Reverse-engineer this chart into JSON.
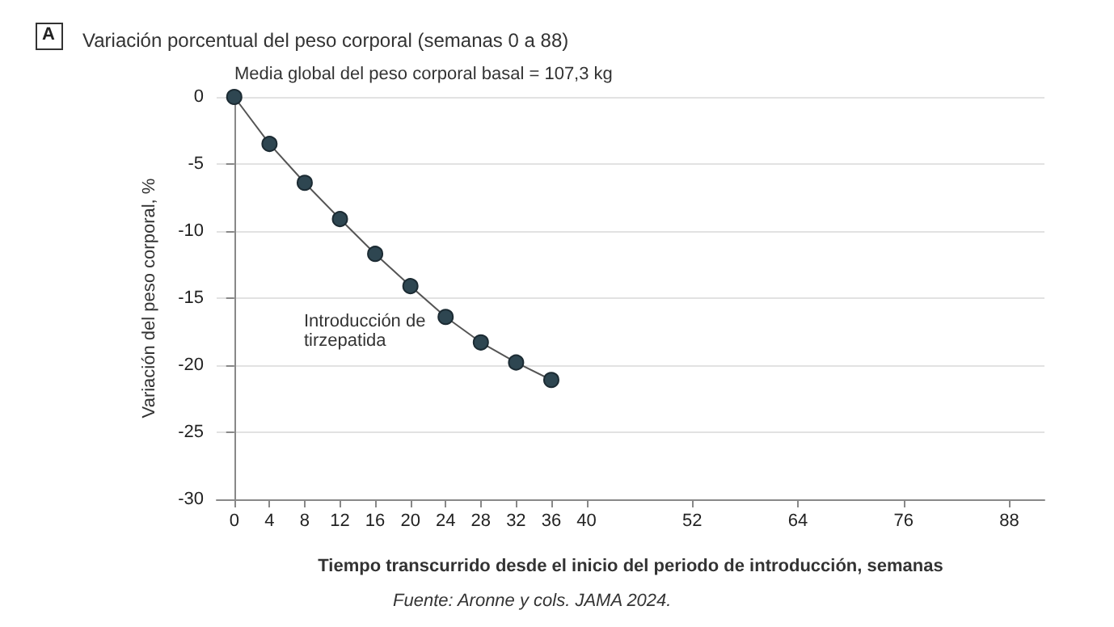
{
  "chart_data": {
    "type": "line",
    "title": "Variación porcentual del peso corporal (semanas 0 a 88)",
    "xlabel": "Tiempo transcurrido desde el inicio del periodo de introducción, semanas",
    "ylabel": "Variación del peso corporal, %",
    "annotations": [
      "A",
      "Media global del peso corporal basal = 107,3 kg",
      "Introducción de\ntirzepatida",
      "Fuente: Aronne y cols. JAMA 2024."
    ],
    "x": [
      0,
      4,
      8,
      12,
      16,
      20,
      24,
      28,
      32,
      36
    ],
    "series": [
      {
        "color": "#2e4651",
        "values": [
          0,
          -3.5,
          -6.4,
          -9.1,
          -11.7,
          -14.1,
          -16.4,
          -18.3,
          -19.8,
          -21.1
        ]
      }
    ],
    "xlim": [
      -2,
      92
    ],
    "xticks": [
      0,
      4,
      8,
      12,
      16,
      20,
      24,
      28,
      32,
      36,
      40,
      52,
      64,
      76,
      88
    ],
    "ylim": [
      -30,
      0
    ],
    "yticks": [
      -30,
      -25,
      -20,
      -15,
      -10,
      -5,
      0
    ],
    "grid": "y",
    "marker": "circle",
    "line_style": "solid"
  }
}
